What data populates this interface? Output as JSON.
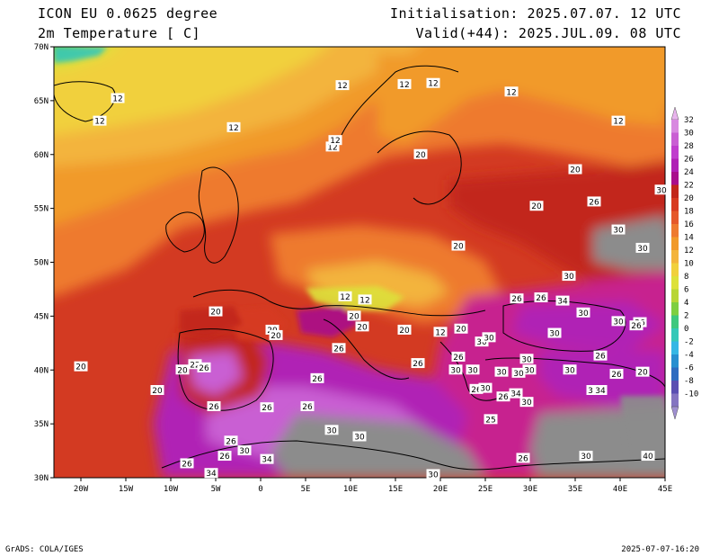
{
  "header": {
    "model": "ICON EU 0.0625 degree",
    "variable": "2m Temperature [ C]",
    "init": "Initialisation: 2025.07.07. 12 UTC",
    "valid": "Valid(+44): 2025.JUL.09. 08 UTC"
  },
  "footer": {
    "left": "GrADS: COLA/IGES",
    "right": "2025-07-07-16:20"
  },
  "map": {
    "lon_range": [
      -23,
      45
    ],
    "lat_range": [
      30,
      70
    ],
    "lon_ticks": [
      {
        "v": -20,
        "t": "20W"
      },
      {
        "v": -15,
        "t": "15W"
      },
      {
        "v": -10,
        "t": "10W"
      },
      {
        "v": -5,
        "t": "5W"
      },
      {
        "v": 0,
        "t": "0"
      },
      {
        "v": 5,
        "t": "5E"
      },
      {
        "v": 10,
        "t": "10E"
      },
      {
        "v": 15,
        "t": "15E"
      },
      {
        "v": 20,
        "t": "20E"
      },
      {
        "v": 25,
        "t": "25E"
      },
      {
        "v": 30,
        "t": "30E"
      },
      {
        "v": 35,
        "t": "35E"
      },
      {
        "v": 40,
        "t": "40E"
      },
      {
        "v": 45,
        "t": "45E"
      }
    ],
    "lat_ticks": [
      {
        "v": 30,
        "t": "30N"
      },
      {
        "v": 35,
        "t": "35N"
      },
      {
        "v": 40,
        "t": "40N"
      },
      {
        "v": 45,
        "t": "45N"
      },
      {
        "v": 50,
        "t": "50N"
      },
      {
        "v": 55,
        "t": "55N"
      },
      {
        "v": 60,
        "t": "60N"
      },
      {
        "v": 65,
        "t": "65N"
      },
      {
        "v": 70,
        "t": "70N"
      }
    ],
    "contour_labels": [
      {
        "lon": -20,
        "lat": 40.3,
        "v": "20"
      },
      {
        "lon": -11.5,
        "lat": 38.1,
        "v": "20"
      },
      {
        "lon": -8.7,
        "lat": 40.0,
        "v": "20"
      },
      {
        "lon": -5,
        "lat": 45.4,
        "v": "20"
      },
      {
        "lon": 1.3,
        "lat": 43.7,
        "v": "20"
      },
      {
        "lon": 1.7,
        "lat": 43.2,
        "v": "20"
      },
      {
        "lon": -7.3,
        "lat": 40.5,
        "v": "22"
      },
      {
        "lon": -6.3,
        "lat": 40.2,
        "v": "26"
      },
      {
        "lon": -5.2,
        "lat": 36.6,
        "v": "26"
      },
      {
        "lon": 0.7,
        "lat": 36.5,
        "v": "26"
      },
      {
        "lon": 5.2,
        "lat": 36.6,
        "v": "26"
      },
      {
        "lon": 6.3,
        "lat": 39.2,
        "v": "26"
      },
      {
        "lon": 8.7,
        "lat": 42.0,
        "v": "26"
      },
      {
        "lon": 10.4,
        "lat": 45.0,
        "v": "20"
      },
      {
        "lon": 11.3,
        "lat": 44.0,
        "v": "20"
      },
      {
        "lon": 9.4,
        "lat": 46.8,
        "v": "12"
      },
      {
        "lon": 11.6,
        "lat": 46.5,
        "v": "12"
      },
      {
        "lon": 16.0,
        "lat": 43.7,
        "v": "20"
      },
      {
        "lon": 20.0,
        "lat": 43.5,
        "v": "12"
      },
      {
        "lon": 22.3,
        "lat": 43.8,
        "v": "20"
      },
      {
        "lon": 17.5,
        "lat": 40.6,
        "v": "26"
      },
      {
        "lon": 22.0,
        "lat": 41.2,
        "v": "26"
      },
      {
        "lon": 21.7,
        "lat": 40.0,
        "v": "30"
      },
      {
        "lon": 23.6,
        "lat": 40.0,
        "v": "30"
      },
      {
        "lon": 24.6,
        "lat": 42.6,
        "v": "30"
      },
      {
        "lon": 24.0,
        "lat": 38.2,
        "v": "26"
      },
      {
        "lon": 25.6,
        "lat": 35.4,
        "v": "25"
      },
      {
        "lon": 26.8,
        "lat": 39.8,
        "v": "30"
      },
      {
        "lon": 27.0,
        "lat": 37.5,
        "v": "26"
      },
      {
        "lon": 28.4,
        "lat": 37.8,
        "v": "34"
      },
      {
        "lon": 29.6,
        "lat": 37.0,
        "v": "30"
      },
      {
        "lon": 29.6,
        "lat": 41.0,
        "v": "30"
      },
      {
        "lon": 29.9,
        "lat": 40.0,
        "v": "30"
      },
      {
        "lon": 31.2,
        "lat": 46.7,
        "v": "26"
      },
      {
        "lon": 28.5,
        "lat": 46.6,
        "v": "26"
      },
      {
        "lon": 33.6,
        "lat": 46.4,
        "v": "34"
      },
      {
        "lon": 35.9,
        "lat": 45.3,
        "v": "30"
      },
      {
        "lon": 34.4,
        "lat": 40.0,
        "v": "30"
      },
      {
        "lon": 37.8,
        "lat": 41.3,
        "v": "26"
      },
      {
        "lon": 37.8,
        "lat": 38.1,
        "v": "34"
      },
      {
        "lon": 36.7,
        "lat": 38.1,
        "v": "3"
      },
      {
        "lon": 39.6,
        "lat": 39.6,
        "v": "26"
      },
      {
        "lon": 42.5,
        "lat": 39.8,
        "v": "20"
      },
      {
        "lon": 42.2,
        "lat": 44.4,
        "v": "26"
      },
      {
        "lon": 39.8,
        "lat": 44.5,
        "v": "30"
      },
      {
        "lon": 41.8,
        "lat": 44.1,
        "v": "26"
      },
      {
        "lon": 32.7,
        "lat": 43.4,
        "v": "30"
      },
      {
        "lon": 25.4,
        "lat": 43.0,
        "v": "30"
      },
      {
        "lon": 34.3,
        "lat": 48.7,
        "v": "30"
      },
      {
        "lon": 39.8,
        "lat": 53.0,
        "v": "30"
      },
      {
        "lon": 37.1,
        "lat": 55.6,
        "v": "26"
      },
      {
        "lon": 35.0,
        "lat": 58.6,
        "v": "20"
      },
      {
        "lon": 30.7,
        "lat": 55.2,
        "v": "20"
      },
      {
        "lon": 44.6,
        "lat": 56.7,
        "v": "30"
      },
      {
        "lon": 42.5,
        "lat": 51.3,
        "v": "30"
      },
      {
        "lon": 22.0,
        "lat": 51.5,
        "v": "20"
      },
      {
        "lon": 17.8,
        "lat": 60.0,
        "v": "20"
      },
      {
        "lon": 8.0,
        "lat": 60.7,
        "v": "12"
      },
      {
        "lon": 8.3,
        "lat": 61.3,
        "v": "12"
      },
      {
        "lon": -3.0,
        "lat": 62.5,
        "v": "12"
      },
      {
        "lon": 9.1,
        "lat": 66.4,
        "v": "12"
      },
      {
        "lon": 16.0,
        "lat": 66.5,
        "v": "12"
      },
      {
        "lon": 19.2,
        "lat": 66.6,
        "v": "12"
      },
      {
        "lon": 27.9,
        "lat": 65.8,
        "v": "12"
      },
      {
        "lon": 39.8,
        "lat": 63.1,
        "v": "12"
      },
      {
        "lon": -15.9,
        "lat": 65.2,
        "v": "12"
      },
      {
        "lon": -17.9,
        "lat": 63.1,
        "v": "12"
      },
      {
        "lon": 28.7,
        "lat": 39.7,
        "v": "30"
      },
      {
        "lon": 25.0,
        "lat": 38.3,
        "v": "30"
      },
      {
        "lon": -4.0,
        "lat": 32.0,
        "v": "26"
      },
      {
        "lon": -3.3,
        "lat": 33.4,
        "v": "26"
      },
      {
        "lon": -1.8,
        "lat": 32.5,
        "v": "30"
      },
      {
        "lon": 0.7,
        "lat": 31.7,
        "v": "34"
      },
      {
        "lon": 7.9,
        "lat": 34.4,
        "v": "30"
      },
      {
        "lon": 11.0,
        "lat": 33.8,
        "v": "30"
      },
      {
        "lon": 29.2,
        "lat": 31.8,
        "v": "26"
      },
      {
        "lon": 36.2,
        "lat": 32.0,
        "v": "30"
      },
      {
        "lon": 43.1,
        "lat": 32.0,
        "v": "40"
      },
      {
        "lon": 19.2,
        "lat": 30.3,
        "v": "30"
      },
      {
        "lon": -8.2,
        "lat": 31.3,
        "v": "26"
      },
      {
        "lon": -5.5,
        "lat": 30.4,
        "v": "34"
      }
    ]
  },
  "colorbar": {
    "levels": [
      "32",
      "30",
      "28",
      "26",
      "24",
      "22",
      "20",
      "18",
      "16",
      "14",
      "12",
      "10",
      "8",
      "6",
      "4",
      "2",
      "0",
      "-2",
      "-4",
      "-6",
      "-8",
      "-10"
    ],
    "colors": [
      "#d889e0",
      "#c95fd3",
      "#c03ecd",
      "#b020b5",
      "#a90e8c",
      "#c2271b",
      "#d73a20",
      "#e5582a",
      "#ee7a2f",
      "#f19a2a",
      "#f3b43c",
      "#f1d03c",
      "#dde13a",
      "#b8d636",
      "#7fcf40",
      "#3fc87e",
      "#35c8b8",
      "#34b7e5",
      "#278fd0",
      "#2d6cc0",
      "#5a4fb2",
      "#8474c1"
    ],
    "low_end_color": "#9f8fd0",
    "high_end_color": "#e8b3ed"
  },
  "colors": {
    "sea_hot": "#c7248f",
    "desert_grey": "#8c8c8c",
    "atlantic": "#d33a22",
    "north_sea": "#ec8a2a"
  }
}
